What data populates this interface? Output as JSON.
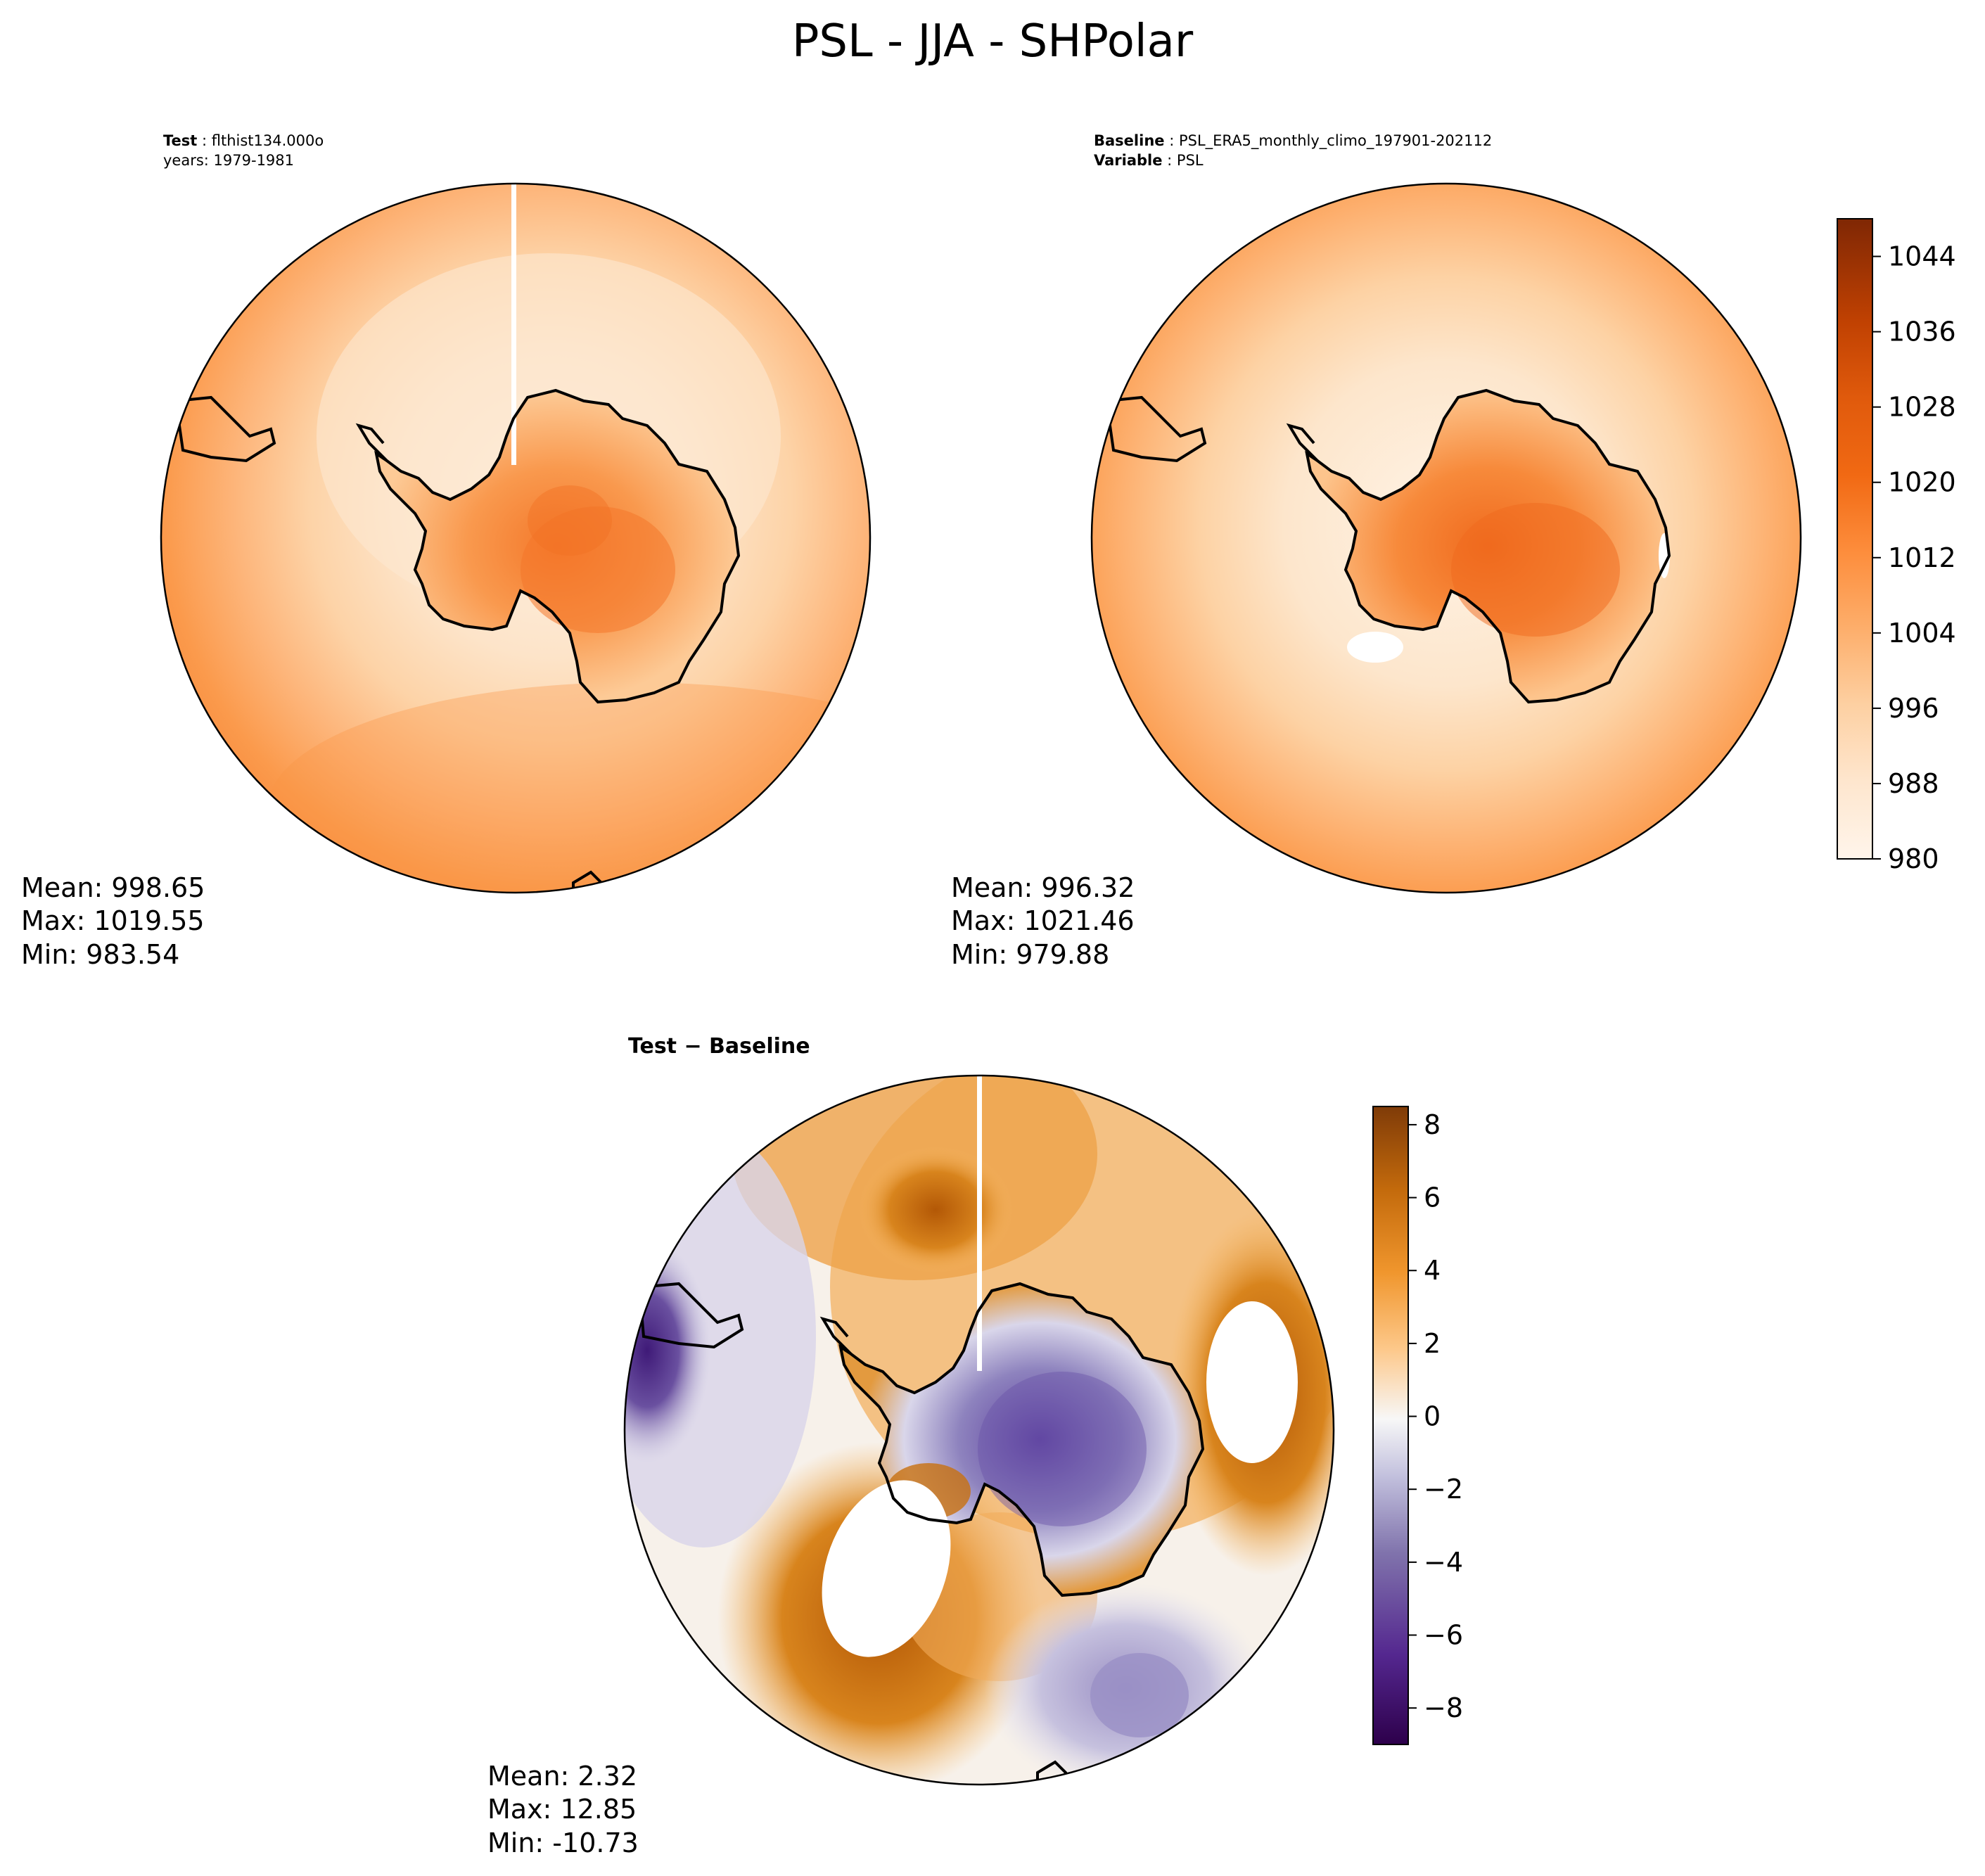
{
  "figure": {
    "title": "PSL - JJA - SHPolar"
  },
  "panels": {
    "test": {
      "label_key": "Test",
      "label_value": "flthist134.000o",
      "sub_line": "years: 1979-1981",
      "stats": {
        "mean": "Mean: 998.65",
        "max": "Max: 1019.55",
        "min": "Min: 983.54"
      }
    },
    "baseline": {
      "label1_key": "Baseline",
      "label1_value": "PSL_ERA5_monthly_climo_197901-202112",
      "label2_key": "Variable",
      "label2_value": "PSL",
      "stats": {
        "mean": "Mean: 996.32",
        "max": "Max: 1021.46",
        "min": "Min: 979.88"
      }
    },
    "diff": {
      "title": "Test − Baseline",
      "stats": {
        "mean": "Mean:  2.32",
        "max": "Max: 12.85",
        "min": "Min: -10.73"
      }
    }
  },
  "colorbars": {
    "psl": {
      "range": [
        980,
        1048
      ],
      "ticks": [
        "980",
        "988",
        "996",
        "1004",
        "1012",
        "1020",
        "1028",
        "1036",
        "1044"
      ],
      "tick_values": [
        980,
        988,
        996,
        1004,
        1012,
        1020,
        1028,
        1036,
        1044
      ],
      "colormap": "Oranges",
      "low_color": "#fff5eb",
      "high_color": "#7f2704"
    },
    "diff": {
      "range": [
        -9,
        8.5
      ],
      "ticks": [
        "−8",
        "−6",
        "−4",
        "−2",
        "0",
        "2",
        "4",
        "6",
        "8"
      ],
      "tick_values": [
        -8,
        -6,
        -4,
        -2,
        0,
        2,
        4,
        6,
        8
      ],
      "colormap": "PuOr_r",
      "low_color": "#2d004b",
      "mid_color": "#f7f7f7",
      "high_color": "#7f3b08"
    }
  }
}
